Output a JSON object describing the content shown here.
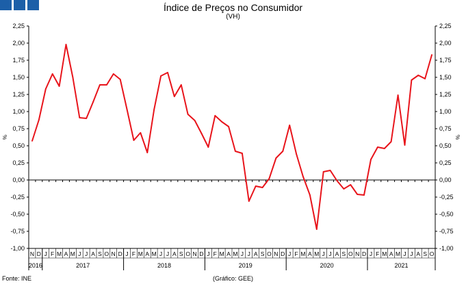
{
  "header": {
    "title": "Índice de Preços no Consumidor",
    "subtitle": "(VH)"
  },
  "footer": {
    "source": "Fonte: INE",
    "credit": "(Gráfico: GEE)"
  },
  "colors": {
    "logo": "#1c5fa8",
    "series": "#e8141b",
    "axis": "#000000"
  },
  "chart_data": {
    "type": "line",
    "title": "Índice de Preços no Consumidor",
    "subtitle": "(VH)",
    "ylabel": "%",
    "y2label": "%",
    "ylim": [
      -1.0,
      2.25
    ],
    "yticks": [
      "-1,00",
      "-0,75",
      "-0,50",
      "-0,25",
      "0,00",
      "0,25",
      "0,50",
      "0,75",
      "1,00",
      "1,25",
      "1,50",
      "1,75",
      "2,00",
      "2,25"
    ],
    "grid": false,
    "month_labels": [
      "N",
      "D",
      "J",
      "F",
      "M",
      "A",
      "M",
      "J",
      "J",
      "A",
      "S",
      "O",
      "N",
      "D",
      "J",
      "F",
      "M",
      "A",
      "M",
      "J",
      "J",
      "A",
      "S",
      "O",
      "N",
      "D",
      "J",
      "F",
      "M",
      "A",
      "M",
      "J",
      "J",
      "A",
      "S",
      "O",
      "N",
      "D",
      "J",
      "F",
      "M",
      "A",
      "M",
      "J",
      "J",
      "A",
      "S",
      "O",
      "N",
      "D",
      "J",
      "F",
      "M",
      "A",
      "M",
      "J",
      "J",
      "A",
      "S",
      "O"
    ],
    "years": [
      {
        "label": "2016",
        "start": 0,
        "count": 2
      },
      {
        "label": "2017",
        "start": 2,
        "count": 12
      },
      {
        "label": "2018",
        "start": 14,
        "count": 12
      },
      {
        "label": "2019",
        "start": 26,
        "count": 12
      },
      {
        "label": "2020",
        "start": 38,
        "count": 12
      },
      {
        "label": "2021",
        "start": 50,
        "count": 10
      }
    ],
    "series": [
      {
        "values": [
          0.57,
          0.88,
          1.33,
          1.55,
          1.37,
          1.98,
          1.5,
          0.91,
          0.9,
          1.14,
          1.39,
          1.39,
          1.55,
          1.47,
          1.03,
          0.58,
          0.69,
          0.4,
          1.03,
          1.52,
          1.57,
          1.22,
          1.39,
          0.96,
          0.87,
          0.68,
          0.48,
          0.94,
          0.85,
          0.78,
          0.42,
          0.39,
          -0.31,
          -0.09,
          -0.11,
          0.02,
          0.32,
          0.42,
          0.8,
          0.38,
          0.05,
          -0.22,
          -0.72,
          0.12,
          0.14,
          -0.01,
          -0.13,
          -0.07,
          -0.21,
          -0.22,
          0.3,
          0.48,
          0.46,
          0.56,
          1.24,
          0.51,
          1.46,
          1.53,
          1.48,
          1.83
        ]
      }
    ]
  }
}
